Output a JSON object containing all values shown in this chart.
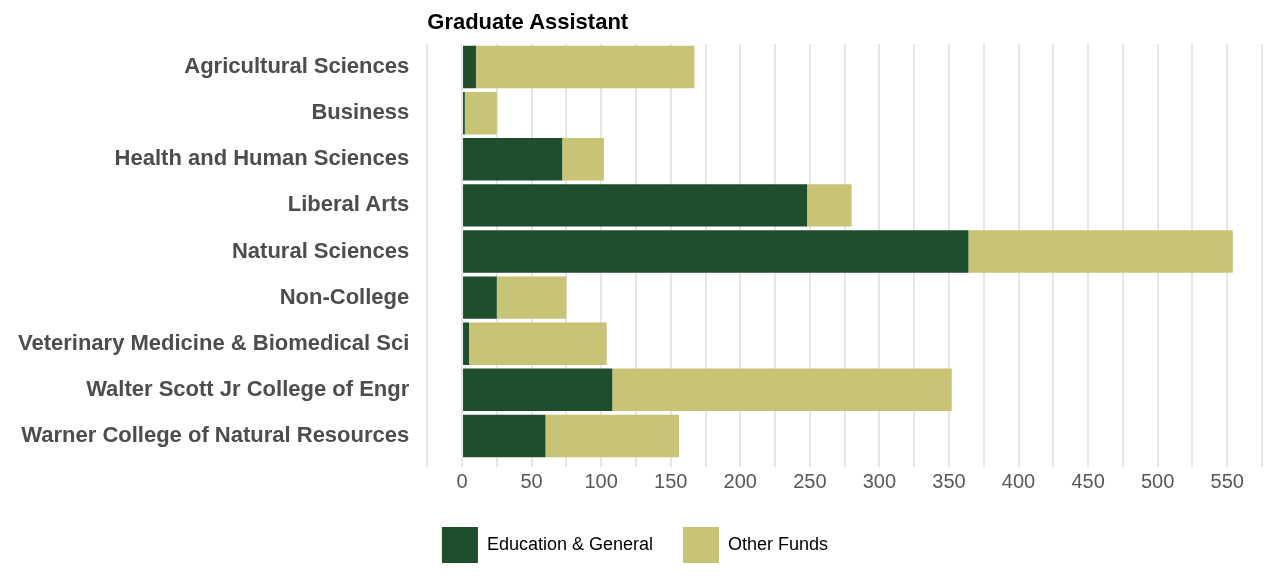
{
  "chart_data": {
    "type": "bar",
    "title": "Graduate Assistant",
    "orientation": "horizontal",
    "stacked": true,
    "categories": [
      "Agricultural Sciences",
      "Business",
      "Health and Human Sciences",
      "Liberal Arts",
      "Natural Sciences",
      "Non-College",
      "Veterinary Medicine & Biomedical Sci",
      "Walter Scott Jr College of Engr",
      "Warner College of Natural Resources"
    ],
    "series": [
      {
        "name": "Education & General",
        "color": "#1f4e2c",
        "values": [
          10,
          2,
          72,
          248,
          364,
          25,
          5,
          108,
          60
        ]
      },
      {
        "name": "Other Funds",
        "color": "#c8c476",
        "values": [
          157,
          23,
          30,
          32,
          190,
          50,
          99,
          244,
          96
        ]
      }
    ],
    "xlim": [
      -25,
      575
    ],
    "xticks": [
      {
        "value": -25,
        "label": null
      },
      0,
      {
        "value": 25,
        "label": null
      },
      50,
      {
        "value": 75,
        "label": null
      },
      100,
      {
        "value": 125,
        "label": null
      },
      150,
      {
        "value": 175,
        "label": null
      },
      200,
      {
        "value": 225,
        "label": null
      },
      250,
      {
        "value": 275,
        "label": null
      },
      300,
      {
        "value": 325,
        "label": null
      },
      350,
      {
        "value": 375,
        "label": null
      },
      400,
      {
        "value": 425,
        "label": null
      },
      450,
      {
        "value": 475,
        "label": null
      },
      500,
      {
        "value": 525,
        "label": null
      },
      550,
      {
        "value": 575,
        "label": null
      }
    ],
    "grid": "x",
    "legend": "bottom"
  }
}
